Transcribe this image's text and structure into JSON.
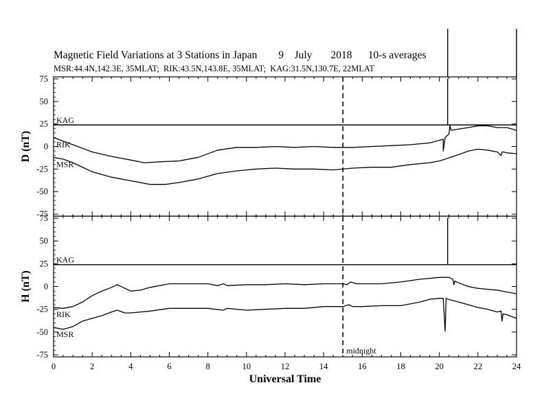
{
  "title": {
    "main": "Magnetic Field Variations at 3 Stations in Japan",
    "day": "9",
    "month": "July",
    "year": "2018",
    "averaging": "10-s averages",
    "stations": "MSR:44.4N,142.3E, 35MLAT;  RIK:43.5N,143.8E, 35MLAT;  KAG:31.5N,130.7E, 22MLAT"
  },
  "chart_data": [
    {
      "type": "line",
      "panel": "D",
      "ylabel": "D (nT)",
      "xlabel": "",
      "xlim": [
        0,
        24
      ],
      "ylim": [
        -75,
        75
      ],
      "yticks": [
        -75,
        -50,
        -25,
        0,
        25,
        50,
        75
      ],
      "series": [
        {
          "name": "KAG",
          "x": [
            0,
            20.43,
            20.43,
            20.43,
            24
          ],
          "y": [
            24,
            24,
            75,
            24,
            24
          ]
        },
        {
          "name": "RIK",
          "x": [
            0,
            0.5,
            1,
            2,
            3,
            4,
            4.7,
            5.5,
            6.5,
            7.5,
            8.5,
            9.5,
            10.5,
            11.5,
            12.5,
            13.5,
            14.5,
            15.5,
            16.5,
            17.5,
            18.5,
            19.5,
            20.2,
            20.2,
            20.3,
            20.5,
            20.55,
            20.6,
            21.5,
            22,
            22.5,
            23,
            23.5,
            24
          ],
          "y": [
            10,
            6,
            2,
            -6,
            -11,
            -15,
            -18,
            -17,
            -16,
            -12,
            -4,
            -1,
            -1,
            0,
            -1,
            0,
            -1,
            -1,
            0,
            1,
            2,
            4,
            8,
            -5,
            10,
            14,
            24,
            18,
            21,
            23,
            23,
            21,
            21,
            18
          ]
        },
        {
          "name": "MSR",
          "x": [
            0,
            0.5,
            1,
            2,
            3,
            4,
            5,
            5.8,
            6.5,
            7.5,
            8.5,
            9.5,
            10.5,
            11.5,
            12.5,
            13.5,
            14.5,
            15.5,
            16.5,
            17.5,
            18.5,
            19.5,
            20,
            20.3,
            21,
            21.5,
            22,
            22.5,
            23,
            23.2,
            23.25,
            23.3,
            23.5,
            24
          ],
          "y": [
            -12,
            -14,
            -18,
            -28,
            -34,
            -38,
            -42,
            -42,
            -40,
            -36,
            -30,
            -27,
            -25,
            -24,
            -25,
            -25,
            -26,
            -24,
            -23,
            -23,
            -20,
            -18,
            -16,
            -14,
            -9,
            -5,
            -3,
            -4,
            -6,
            -10,
            -6,
            -6,
            -7,
            -8
          ]
        }
      ]
    },
    {
      "type": "line",
      "panel": "H",
      "ylabel": "H (nT)",
      "xlabel": "Universal Time",
      "xlim": [
        0,
        24
      ],
      "ylim": [
        -75,
        75
      ],
      "yticks": [
        -75,
        -50,
        -25,
        0,
        25,
        50,
        75
      ],
      "xticks": [
        0,
        2,
        4,
        6,
        8,
        10,
        12,
        14,
        16,
        18,
        20,
        22,
        24
      ],
      "series": [
        {
          "name": "KAG",
          "x": [
            0,
            20.43,
            20.43,
            20.43,
            24
          ],
          "y": [
            24,
            24,
            75,
            24,
            24
          ]
        },
        {
          "name": "RIK",
          "x": [
            0,
            0.5,
            1,
            1.5,
            2,
            2.5,
            3,
            3.3,
            3.6,
            4,
            4.5,
            5,
            6,
            7,
            8,
            8.5,
            8.8,
            9,
            10,
            11,
            12,
            13,
            14,
            15,
            15.2,
            15.4,
            15.7,
            16,
            17,
            18,
            19,
            20,
            20.5,
            20.7,
            20.75,
            20.8,
            21,
            21.5,
            22,
            22.5,
            23,
            23.5,
            24
          ],
          "y": [
            -23,
            -24,
            -22,
            -17,
            -10,
            -5,
            -1,
            2,
            -1,
            -5,
            -4,
            -1,
            3,
            3,
            3,
            1,
            3,
            1,
            2,
            2,
            3,
            2,
            3,
            3,
            2,
            5,
            3,
            3,
            3,
            5,
            8,
            10,
            10,
            8,
            2,
            6,
            4,
            0,
            -2,
            -3,
            -4,
            -6,
            -8
          ]
        },
        {
          "name": "MSR",
          "x": [
            0,
            0.5,
            1,
            1.5,
            2,
            2.5,
            3,
            3.3,
            3.7,
            4,
            5,
            6,
            7,
            8,
            8.8,
            9,
            10,
            11,
            12,
            13,
            14,
            15,
            15.3,
            15.5,
            16,
            17,
            18,
            19,
            19.5,
            20,
            20.2,
            20.3,
            20.35,
            20.45,
            21,
            22,
            22.5,
            23,
            23.2,
            23.25,
            23.3,
            23.5,
            24
          ],
          "y": [
            -45,
            -47,
            -44,
            -38,
            -35,
            -32,
            -28,
            -26,
            -29,
            -29,
            -27,
            -24,
            -24,
            -24,
            -26,
            -24,
            -26,
            -25,
            -24,
            -24,
            -22,
            -22,
            -20,
            -22,
            -22,
            -21,
            -21,
            -17,
            -14,
            -13,
            -13,
            -49,
            -13,
            -14,
            -17,
            -23,
            -25,
            -28,
            -27,
            -38,
            -30,
            -31,
            -35
          ]
        }
      ]
    }
  ],
  "midnight_marker": {
    "label": "midnight",
    "x": 15
  },
  "vertical_line_x": 24
}
